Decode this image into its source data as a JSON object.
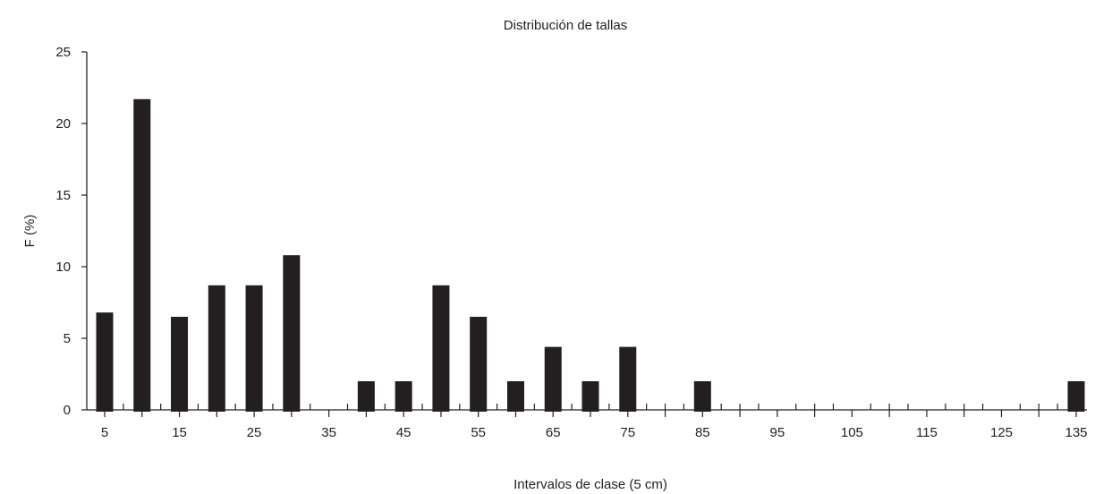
{
  "chart_data": {
    "type": "bar",
    "title": "Distribución de tallas",
    "xlabel": "Intervalos de clase (5 cm)",
    "ylabel": "F (%)",
    "ylim": [
      0,
      25
    ],
    "xlim": [
      5,
      135
    ],
    "y_ticks": [
      0,
      5,
      10,
      15,
      20,
      25
    ],
    "x_tick_labels": [
      "5",
      "15",
      "25",
      "35",
      "45",
      "55",
      "65",
      "75",
      "85",
      "95",
      "105",
      "115",
      "125",
      "135"
    ],
    "x_tick_positions": [
      5,
      15,
      25,
      35,
      45,
      55,
      65,
      75,
      85,
      95,
      105,
      115,
      125,
      135
    ],
    "grid": false,
    "bar_color": "#231f20",
    "x": [
      5,
      10,
      15,
      20,
      25,
      30,
      40,
      45,
      50,
      55,
      60,
      65,
      70,
      75,
      85,
      135
    ],
    "values": [
      6.8,
      21.7,
      6.5,
      8.7,
      8.7,
      10.8,
      2.0,
      2.0,
      8.7,
      6.5,
      2.0,
      4.4,
      2.0,
      4.4,
      2.0,
      2.0
    ]
  }
}
